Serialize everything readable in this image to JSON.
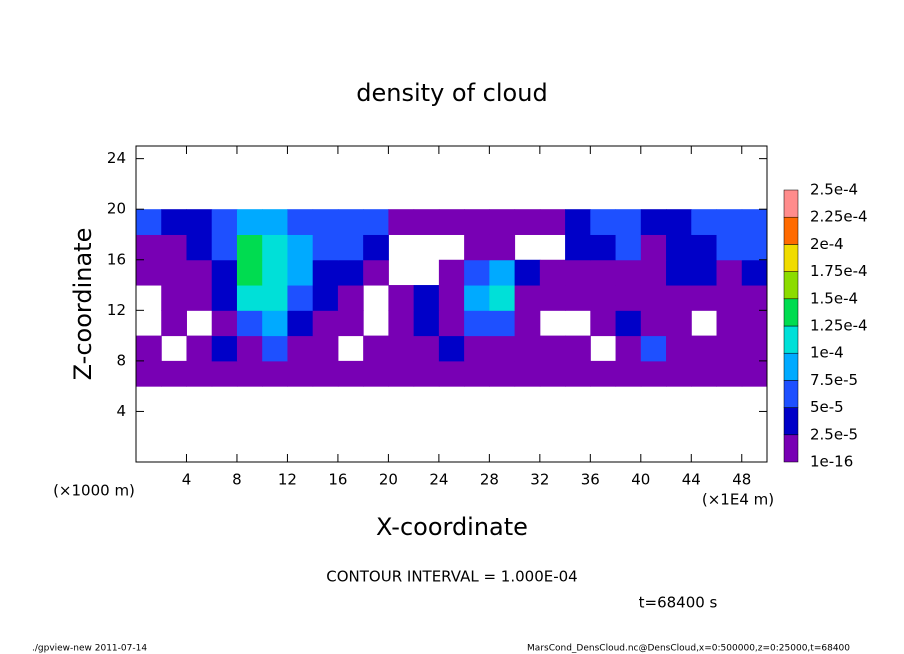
{
  "chart_data": {
    "type": "heatmap",
    "title": "density of cloud",
    "x_label": "X-coordinate",
    "y_label": "Z-coordinate",
    "x_unit": "(×1E4 m)",
    "y_unit": "(×1000 m)",
    "xlim": [
      0,
      50
    ],
    "ylim": [
      0,
      25
    ],
    "xticks": [
      4,
      8,
      12,
      16,
      20,
      24,
      28,
      32,
      36,
      40,
      44,
      48
    ],
    "yticks": [
      4,
      8,
      12,
      16,
      20,
      24
    ],
    "x": [
      1,
      3,
      5,
      7,
      9,
      11,
      13,
      15,
      17,
      19,
      21,
      23,
      25,
      27,
      29,
      31,
      33,
      35,
      37,
      39,
      41,
      43,
      45,
      47,
      49
    ],
    "y": [
      7,
      9,
      11,
      13,
      15,
      17,
      19
    ],
    "z": [
      [
        2e-05,
        1e-05,
        1e-05,
        2e-05,
        1e-05,
        2e-05,
        2e-05,
        1e-05,
        1e-05,
        2e-05,
        1e-05,
        1e-05,
        1e-05,
        1e-05,
        1e-05,
        1e-05,
        1e-05,
        1e-05,
        1e-05,
        1e-05,
        1e-05,
        1e-05,
        1e-05,
        1e-05,
        1e-05
      ],
      [
        1e-05,
        null,
        2e-05,
        3e-05,
        2e-05,
        5e-05,
        2e-05,
        1e-05,
        null,
        1e-05,
        1e-05,
        2e-05,
        3e-05,
        2e-05,
        2e-05,
        1e-05,
        1e-05,
        1e-05,
        null,
        2e-05,
        6e-05,
        1e-05,
        1e-05,
        2e-05,
        1e-05
      ],
      [
        null,
        1e-05,
        null,
        2e-05,
        6e-05,
        8e-05,
        4e-05,
        2e-05,
        1e-05,
        null,
        2e-05,
        3e-05,
        2e-05,
        5e-05,
        7e-05,
        1e-05,
        null,
        null,
        1e-05,
        3e-05,
        2e-05,
        1e-05,
        null,
        1e-05,
        1e-05
      ],
      [
        null,
        1e-05,
        1e-05,
        3e-05,
        0.0001,
        0.00011,
        6e-05,
        3e-05,
        2e-05,
        null,
        1e-05,
        3e-05,
        2e-05,
        8e-05,
        0.00011,
        2e-05,
        1e-05,
        1e-05,
        1e-05,
        1e-05,
        1e-05,
        1e-05,
        2e-05,
        1e-05,
        1e-05
      ],
      [
        1e-05,
        2e-05,
        1e-05,
        4e-05,
        0.00014,
        0.00012,
        8e-05,
        4e-05,
        3e-05,
        2e-05,
        null,
        null,
        1e-05,
        6e-05,
        9e-05,
        3e-05,
        1e-05,
        1e-05,
        2e-05,
        2e-05,
        1e-05,
        3e-05,
        3e-05,
        2e-05,
        4e-05
      ],
      [
        2e-05,
        1e-05,
        3e-05,
        7e-05,
        0.00013,
        0.00012,
        9e-05,
        6e-05,
        5e-05,
        4e-05,
        null,
        null,
        null,
        1e-05,
        1e-05,
        null,
        null,
        3e-05,
        4e-05,
        5e-05,
        2e-05,
        3e-05,
        4e-05,
        5e-05,
        6e-05
      ],
      [
        5e-05,
        3e-05,
        4e-05,
        6e-05,
        8e-05,
        9e-05,
        7e-05,
        6e-05,
        7e-05,
        5e-05,
        2e-05,
        1e-05,
        1e-05,
        1e-05,
        1e-05,
        1e-05,
        2e-05,
        4e-05,
        7e-05,
        6e-05,
        3e-05,
        4e-05,
        5e-05,
        6e-05,
        5e-05
      ]
    ],
    "levels": [
      {
        "value": 1e-16,
        "label": "1e-16"
      },
      {
        "value": 2.5e-05,
        "label": "2.5e-5"
      },
      {
        "value": 5e-05,
        "label": "5e-5"
      },
      {
        "value": 7.5e-05,
        "label": "7.5e-5"
      },
      {
        "value": 0.0001,
        "label": "1e-4"
      },
      {
        "value": 0.000125,
        "label": "1.25e-4"
      },
      {
        "value": 0.00015,
        "label": "1.5e-4"
      },
      {
        "value": 0.000175,
        "label": "1.75e-4"
      },
      {
        "value": 0.0002,
        "label": "2e-4"
      },
      {
        "value": 0.000225,
        "label": "2.25e-4"
      },
      {
        "value": 0.00025,
        "label": "2.5e-4"
      }
    ],
    "colors": [
      "#7800b4",
      "#0000c8",
      "#1e50ff",
      "#00aaff",
      "#00e0d8",
      "#00dc50",
      "#8cdc00",
      "#f0dc00",
      "#ff6a00",
      "#ff8c8c"
    ],
    "contour_note": "CONTOUR INTERVAL = 1.000E-04",
    "time_label": "t=68400 s",
    "footer_left": "./gpview-new  2011-07-14",
    "footer_right": "MarsCond_DensCloud.nc@DensCloud,x=0:500000,z=0:25000,t=68400"
  }
}
